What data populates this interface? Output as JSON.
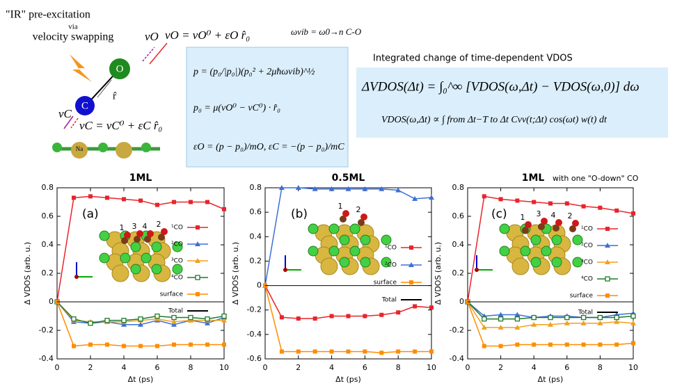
{
  "scheme": {
    "line1": "\"IR\" pre-excitation",
    "line2": "via",
    "line3": "velocity swapping",
    "vO_label": "vO",
    "vO_eq": "vO = vO⁰ + εO r̂₀",
    "O": "O",
    "C": "C",
    "r_hat": "r̂",
    "vC_label": "vC",
    "vC_eq": "vC = vC⁰ + εC r̂₀",
    "Na": "Na"
  },
  "omega": "ωvib = ω0→n C-O",
  "momentum_box": {
    "eq1": "p = (p₀/|p₀|)(p₀² + 2μħωvib)^½",
    "eq2": "p₀ = μ(vO⁰ − vC⁰) · r̂₀",
    "eq3": "εO = (p − p₀)/mO,  εC = −(p − p₀)/mC"
  },
  "vdos": {
    "heading": "Integrated change of time-dependent VDOS",
    "eq1": "ΔVDOS(Δt) = ∫₀^∞ [VDOS(ω,Δt) − VDOS(ω,0)] dω",
    "eq2": "VDOS(ω,Δt) ∝ ∫ from Δt−T to Δt  Cvv(t;Δt) cos(ωt) w(t) dt"
  },
  "chart_data": [
    {
      "type": "line",
      "title": "1ML",
      "panel_label": "(a)",
      "xlabel": "Δt (ps)",
      "ylabel": "Δ VDOS (arb. u.)",
      "inset_labels": [
        "1",
        "3",
        "4",
        "2"
      ],
      "x": [
        0,
        1,
        2,
        3,
        4,
        5,
        6,
        7,
        8,
        9,
        10
      ],
      "xlim": [
        0,
        10
      ],
      "xticks": [
        0,
        2,
        4,
        6,
        8,
        10
      ],
      "ylim": [
        -0.4,
        0.8
      ],
      "yticks": [
        -0.4,
        -0.2,
        0,
        0.2,
        0.4,
        0.6,
        0.8
      ],
      "series": [
        {
          "name": "¹CO",
          "color": "#e8242b",
          "marker": "square",
          "values": [
            0,
            0.73,
            0.74,
            0.73,
            0.72,
            0.71,
            0.68,
            0.7,
            0.7,
            0.7,
            0.65
          ]
        },
        {
          "name": "²CO",
          "color": "#3b6fd8",
          "marker": "triangle",
          "values": [
            0,
            -0.14,
            -0.15,
            -0.14,
            -0.16,
            -0.16,
            -0.13,
            -0.16,
            -0.13,
            -0.15,
            -0.11
          ]
        },
        {
          "name": "³CO",
          "color": "#f0a020",
          "marker": "triangle",
          "values": [
            0,
            -0.13,
            -0.14,
            -0.14,
            -0.14,
            -0.13,
            -0.12,
            -0.14,
            -0.13,
            -0.13,
            -0.13
          ]
        },
        {
          "name": "⁴CO",
          "color": "#1d7a2a",
          "marker": "open-square",
          "values": [
            0,
            -0.12,
            -0.15,
            -0.13,
            -0.13,
            -0.12,
            -0.1,
            -0.11,
            -0.11,
            -0.12,
            -0.1
          ]
        },
        {
          "name": "surface",
          "color": "#ff8c00",
          "marker": "square",
          "values": [
            0,
            -0.31,
            -0.3,
            -0.3,
            -0.31,
            -0.31,
            -0.31,
            -0.3,
            -0.3,
            -0.3,
            -0.3
          ]
        },
        {
          "name": "Total",
          "color": "#000000",
          "marker": "none",
          "values": [
            0,
            0,
            0,
            0,
            0,
            0,
            0,
            0,
            0,
            0,
            0
          ]
        }
      ]
    },
    {
      "type": "line",
      "title": "0.5ML",
      "panel_label": "(b)",
      "xlabel": "Δt (ps)",
      "ylabel": "Δ VDOS (arb. u.)",
      "inset_labels": [
        "1",
        "2"
      ],
      "x": [
        0,
        1,
        2,
        3,
        4,
        5,
        6,
        7,
        8,
        9,
        10
      ],
      "xlim": [
        0,
        10
      ],
      "xticks": [
        0,
        2,
        4,
        6,
        8,
        10
      ],
      "ylim": [
        -0.6,
        0.8
      ],
      "yticks": [
        -0.6,
        -0.4,
        -0.2,
        0,
        0.2,
        0.4,
        0.6,
        0.8
      ],
      "series": [
        {
          "name": "¹CO",
          "color": "#e8242b",
          "marker": "square",
          "values": [
            0,
            -0.26,
            -0.27,
            -0.27,
            -0.25,
            -0.25,
            -0.25,
            -0.24,
            -0.22,
            -0.17,
            -0.18
          ]
        },
        {
          "name": "²CO",
          "color": "#3b6fd8",
          "marker": "triangle",
          "values": [
            0,
            0.8,
            0.8,
            0.79,
            0.79,
            0.79,
            0.79,
            0.79,
            0.78,
            0.71,
            0.72
          ]
        },
        {
          "name": "surface",
          "color": "#ff8c00",
          "marker": "square",
          "values": [
            0,
            -0.54,
            -0.54,
            -0.54,
            -0.54,
            -0.54,
            -0.54,
            -0.55,
            -0.54,
            -0.54,
            -0.54
          ]
        },
        {
          "name": "Total",
          "color": "#000000",
          "marker": "none",
          "values": [
            0,
            0,
            0,
            0,
            0,
            0,
            0,
            0,
            0,
            0,
            0
          ]
        }
      ]
    },
    {
      "type": "line",
      "title": "1ML",
      "subtitle": "with one \"O-down\" CO",
      "panel_label": "(c)",
      "xlabel": "Δt (ps)",
      "ylabel": "Δ VDOS (arb. u.)",
      "inset_labels": [
        "1",
        "3",
        "4",
        "2"
      ],
      "x": [
        0,
        1,
        2,
        3,
        4,
        5,
        6,
        7,
        8,
        9,
        10
      ],
      "xlim": [
        0,
        10
      ],
      "xticks": [
        0,
        2,
        4,
        6,
        8,
        10
      ],
      "ylim": [
        -0.4,
        0.8
      ],
      "yticks": [
        -0.4,
        -0.2,
        0,
        0.2,
        0.4,
        0.6,
        0.8
      ],
      "series": [
        {
          "name": "¹CO",
          "color": "#e8242b",
          "marker": "square",
          "values": [
            0,
            0.74,
            0.72,
            0.71,
            0.7,
            0.69,
            0.69,
            0.67,
            0.66,
            0.64,
            0.62
          ]
        },
        {
          "name": "²CO",
          "color": "#3b6fd8",
          "marker": "triangle",
          "values": [
            0,
            -0.1,
            -0.09,
            -0.09,
            -0.11,
            -0.1,
            -0.1,
            -0.11,
            -0.11,
            -0.09,
            -0.08
          ]
        },
        {
          "name": "³CO",
          "color": "#f0a020",
          "marker": "triangle",
          "values": [
            0,
            -0.18,
            -0.18,
            -0.18,
            -0.16,
            -0.16,
            -0.15,
            -0.15,
            -0.15,
            -0.14,
            -0.15
          ]
        },
        {
          "name": "⁴CO",
          "color": "#1d7a2a",
          "marker": "open-square",
          "values": [
            0,
            -0.12,
            -0.12,
            -0.12,
            -0.11,
            -0.11,
            -0.11,
            -0.11,
            -0.11,
            -0.11,
            -0.1
          ]
        },
        {
          "name": "surface",
          "color": "#ff8c00",
          "marker": "square",
          "values": [
            0,
            -0.31,
            -0.31,
            -0.3,
            -0.3,
            -0.3,
            -0.3,
            -0.3,
            -0.3,
            -0.3,
            -0.29
          ]
        },
        {
          "name": "Total",
          "color": "#000000",
          "marker": "none",
          "values": [
            0,
            0,
            0,
            0,
            0,
            0,
            0,
            0,
            0,
            0,
            0
          ]
        }
      ]
    }
  ]
}
